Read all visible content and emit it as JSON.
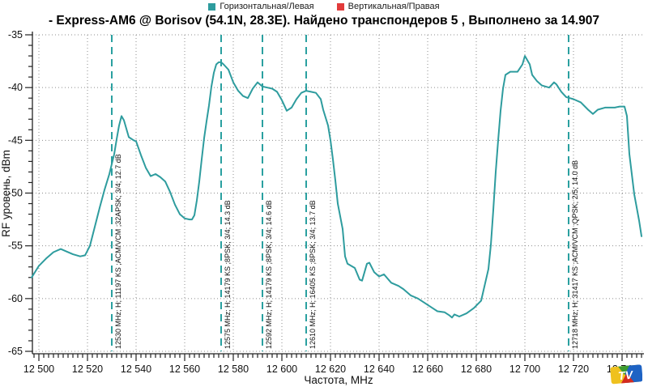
{
  "title": "- Express-AM6 @ Borisov (54.1N, 28.3E). Найдено транспондеров 5 , Выполнено за 14.907",
  "legend": {
    "items": [
      {
        "label": "Горизонтальная/Левая",
        "color": "#2E9C9E"
      },
      {
        "label": "Вертикальная/Правая",
        "color": "#E23B3B"
      }
    ]
  },
  "watermark": {
    "text": "TV",
    "colors": {
      "yellow": "#EFC11E",
      "green": "#3C9B2F",
      "blue": "#1E63C4",
      "red": "#D42A1E"
    }
  },
  "chart_data": {
    "type": "line",
    "title": "- Express-AM6 @ Borisov (54.1N, 28.3E). Найдено транспондеров 5 , Выполнено за 14.907",
    "xlabel": "Частота, MHz",
    "ylabel": "RF уровень, dBm",
    "xlim": [
      12497,
      12749
    ],
    "ylim": [
      -65,
      -35
    ],
    "grid": "dotted",
    "legend_position": "top-center",
    "x_ticks": [
      {
        "v": 12500,
        "t": "12 500"
      },
      {
        "v": 12520,
        "t": "12 520"
      },
      {
        "v": 12540,
        "t": "12 540"
      },
      {
        "v": 12560,
        "t": "12 560"
      },
      {
        "v": 12580,
        "t": "12 580"
      },
      {
        "v": 12600,
        "t": "12 600"
      },
      {
        "v": 12620,
        "t": "12 620"
      },
      {
        "v": 12640,
        "t": "12 640"
      },
      {
        "v": 12660,
        "t": "12 660"
      },
      {
        "v": 12680,
        "t": "12 680"
      },
      {
        "v": 12700,
        "t": "12 700"
      },
      {
        "v": 12720,
        "t": "12 720"
      },
      {
        "v": 12740,
        "t": "12 740"
      }
    ],
    "y_ticks": [
      -35,
      -40,
      -45,
      -50,
      -55,
      -60,
      -65
    ],
    "x_minor_step": 2,
    "y_minor_step": 1,
    "markers": [
      {
        "freq": 12530,
        "label": "12530 MHz; H; 11197 KS ;ACM/VCM ;32APSK; 3/4; 12.7 dB"
      },
      {
        "freq": 12575,
        "label": "12575 MHz; H; 14179 KS ;8PSK; 3/4; 14.3 dB"
      },
      {
        "freq": 12592,
        "label": "12592 MHz; H; 14179 KS ;8PSK; 3/4; 14.6 dB"
      },
      {
        "freq": 12610,
        "label": "12610 MHz; H; 16405 KS ;8PSK; 3/4; 13.7 dB"
      },
      {
        "freq": 12718,
        "label": "12718 MHz; H; 31417 KS ;ACM/VCM ;QPSK; 2/5; 14.0 dB"
      }
    ],
    "marker_color": "#2AA0A0",
    "series": [
      {
        "name": "Горизонтальная/Левая",
        "color": "#2E9C9E",
        "points": [
          [
            12497,
            -58.0
          ],
          [
            12500,
            -56.9
          ],
          [
            12503,
            -56.2
          ],
          [
            12506,
            -55.6
          ],
          [
            12509,
            -55.3
          ],
          [
            12511,
            -55.5
          ],
          [
            12514,
            -55.8
          ],
          [
            12517,
            -56.0
          ],
          [
            12519,
            -55.9
          ],
          [
            12521,
            -55.0
          ],
          [
            12523,
            -53.2
          ],
          [
            12525,
            -51.4
          ],
          [
            12527,
            -49.7
          ],
          [
            12529,
            -48.2
          ],
          [
            12531,
            -46.3
          ],
          [
            12532,
            -44.9
          ],
          [
            12533,
            -43.6
          ],
          [
            12534,
            -42.7
          ],
          [
            12535,
            -43.1
          ],
          [
            12536,
            -43.9
          ],
          [
            12537,
            -44.7
          ],
          [
            12539,
            -45.0
          ],
          [
            12540,
            -45.1
          ],
          [
            12542,
            -46.4
          ],
          [
            12544,
            -47.6
          ],
          [
            12546,
            -48.4
          ],
          [
            12548,
            -48.2
          ],
          [
            12550,
            -48.5
          ],
          [
            12552,
            -48.9
          ],
          [
            12554,
            -49.9
          ],
          [
            12556,
            -51.1
          ],
          [
            12558,
            -52.0
          ],
          [
            12560,
            -52.4
          ],
          [
            12562,
            -52.5
          ],
          [
            12563,
            -52.5
          ],
          [
            12564,
            -52.1
          ],
          [
            12565,
            -50.7
          ],
          [
            12566,
            -48.9
          ],
          [
            12567,
            -46.8
          ],
          [
            12568,
            -44.8
          ],
          [
            12569,
            -43.2
          ],
          [
            12570,
            -41.7
          ],
          [
            12571,
            -39.9
          ],
          [
            12572,
            -38.6
          ],
          [
            12573,
            -37.8
          ],
          [
            12574,
            -37.6
          ],
          [
            12575,
            -37.6
          ],
          [
            12576,
            -37.8
          ],
          [
            12578,
            -38.3
          ],
          [
            12580,
            -39.5
          ],
          [
            12582,
            -40.3
          ],
          [
            12584,
            -40.8
          ],
          [
            12586,
            -41.0
          ],
          [
            12588,
            -40.1
          ],
          [
            12590,
            -39.5
          ],
          [
            12592,
            -39.9
          ],
          [
            12594,
            -40.0
          ],
          [
            12596,
            -40.1
          ],
          [
            12598,
            -40.4
          ],
          [
            12600,
            -41.2
          ],
          [
            12602,
            -42.2
          ],
          [
            12604,
            -41.9
          ],
          [
            12606,
            -41.1
          ],
          [
            12608,
            -40.5
          ],
          [
            12610,
            -40.3
          ],
          [
            12612,
            -40.4
          ],
          [
            12614,
            -40.5
          ],
          [
            12616,
            -41.1
          ],
          [
            12617,
            -42.1
          ],
          [
            12619,
            -43.6
          ],
          [
            12620,
            -45.0
          ],
          [
            12621,
            -46.8
          ],
          [
            12622,
            -48.8
          ],
          [
            12623,
            -51.0
          ],
          [
            12625,
            -53.4
          ],
          [
            12626,
            -56.0
          ],
          [
            12627,
            -56.7
          ],
          [
            12630,
            -57.1
          ],
          [
            12632,
            -58.2
          ],
          [
            12633,
            -58.3
          ],
          [
            12635,
            -56.7
          ],
          [
            12636,
            -56.6
          ],
          [
            12638,
            -57.5
          ],
          [
            12640,
            -57.9
          ],
          [
            12642,
            -57.7
          ],
          [
            12645,
            -58.5
          ],
          [
            12648,
            -58.8
          ],
          [
            12650,
            -59.1
          ],
          [
            12653,
            -59.7
          ],
          [
            12656,
            -60.0
          ],
          [
            12658,
            -60.3
          ],
          [
            12662,
            -60.9
          ],
          [
            12664,
            -61.2
          ],
          [
            12667,
            -61.3
          ],
          [
            12669,
            -61.6
          ],
          [
            12670,
            -61.8
          ],
          [
            12671,
            -61.5
          ],
          [
            12673,
            -61.7
          ],
          [
            12676,
            -61.4
          ],
          [
            12679,
            -60.9
          ],
          [
            12682,
            -60.2
          ],
          [
            12683,
            -59.2
          ],
          [
            12685,
            -57.2
          ],
          [
            12686,
            -54.9
          ],
          [
            12687,
            -51.6
          ],
          [
            12688,
            -48.0
          ],
          [
            12689,
            -45.0
          ],
          [
            12690,
            -42.2
          ],
          [
            12691,
            -40.1
          ],
          [
            12692,
            -38.8
          ],
          [
            12694,
            -38.5
          ],
          [
            12697,
            -38.5
          ],
          [
            12699,
            -37.8
          ],
          [
            12700,
            -37.0
          ],
          [
            12702,
            -37.8
          ],
          [
            12703,
            -38.8
          ],
          [
            12705,
            -39.4
          ],
          [
            12707,
            -39.8
          ],
          [
            12710,
            -40.0
          ],
          [
            12712,
            -39.5
          ],
          [
            12713,
            -39.7
          ],
          [
            12715,
            -40.4
          ],
          [
            12717,
            -40.9
          ],
          [
            12720,
            -41.1
          ],
          [
            12723,
            -41.4
          ],
          [
            12726,
            -42.1
          ],
          [
            12728,
            -42.5
          ],
          [
            12730,
            -42.1
          ],
          [
            12733,
            -41.9
          ],
          [
            12737,
            -41.9
          ],
          [
            12739,
            -41.8
          ],
          [
            12741,
            -41.8
          ],
          [
            12742,
            -42.7
          ],
          [
            12743,
            -46.3
          ],
          [
            12745,
            -50.1
          ],
          [
            12747,
            -52.6
          ],
          [
            12748,
            -54.1
          ]
        ]
      },
      {
        "name": "Вертикальная/Правая",
        "color": "#E23B3B",
        "points": []
      }
    ]
  }
}
